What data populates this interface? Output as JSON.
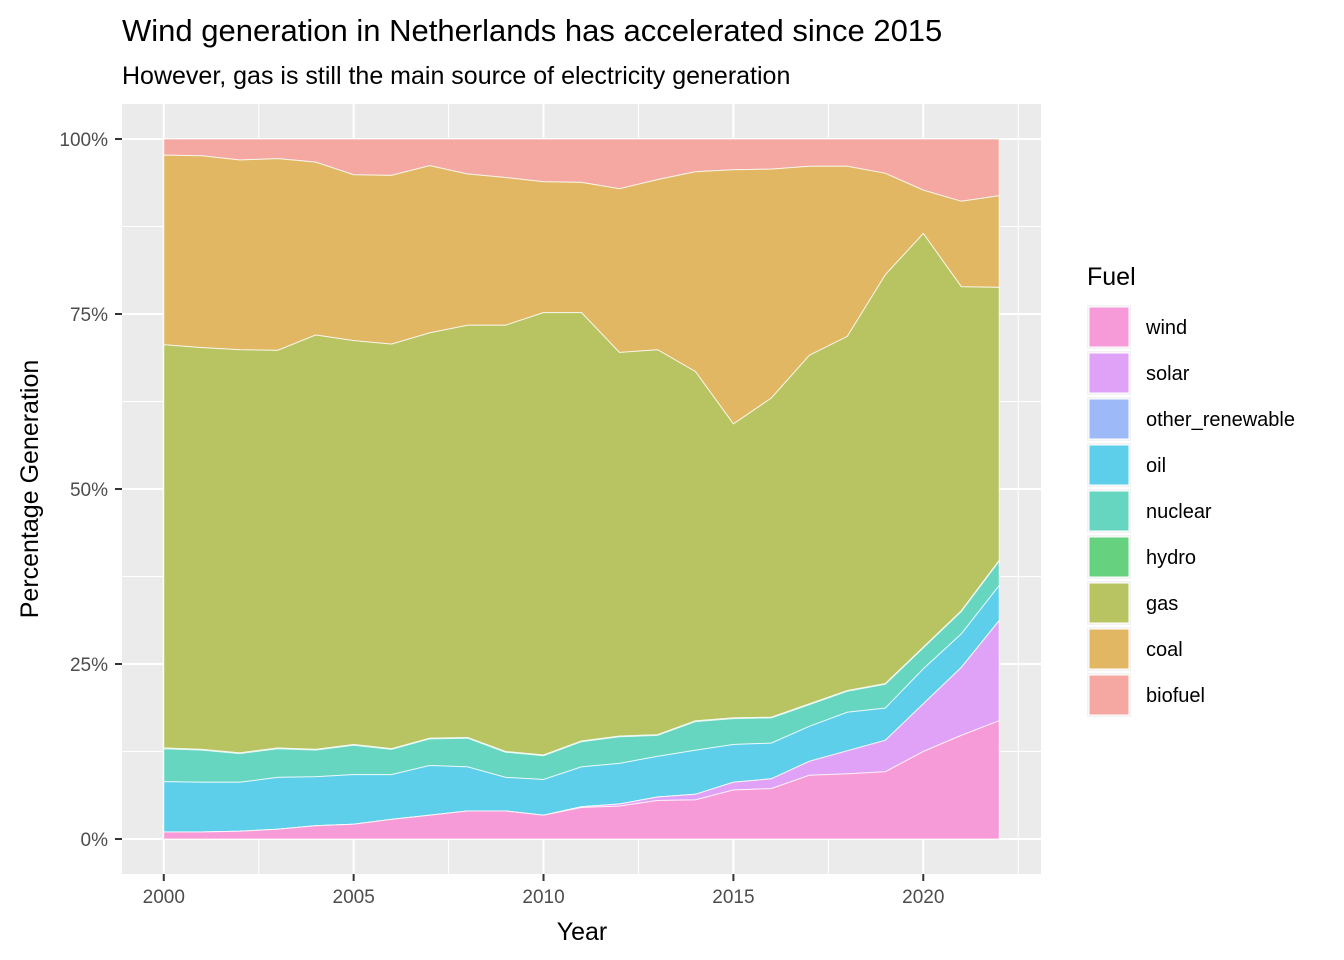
{
  "chart_data": {
    "type": "area",
    "stacked": true,
    "normalized": true,
    "title": "Wind generation in Netherlands has accelerated since 2015",
    "subtitle": "However, gas is still the main source of electricity generation",
    "xlabel": "Year",
    "ylabel": "Percentage Generation",
    "xlim": [
      1998.9,
      2023.1
    ],
    "ylim": [
      -0.05,
      1.05
    ],
    "x_ticks": [
      2000,
      2005,
      2010,
      2015,
      2020
    ],
    "x_tick_labels": [
      "2000",
      "2005",
      "2010",
      "2015",
      "2020"
    ],
    "y_ticks": [
      0,
      0.25,
      0.5,
      0.75,
      1
    ],
    "y_tick_labels": [
      "0%",
      "25%",
      "50%",
      "75%",
      "100%"
    ],
    "grid": true,
    "legend": {
      "title": "Fuel",
      "position": "right"
    },
    "x": [
      2000,
      2001,
      2002,
      2003,
      2004,
      2005,
      2006,
      2007,
      2008,
      2009,
      2010,
      2011,
      2012,
      2013,
      2014,
      2015,
      2016,
      2017,
      2018,
      2019,
      2020,
      2021,
      2022
    ],
    "series": [
      {
        "name": "wind",
        "color": "#F8766D",
        "display_color": "#F69AD8",
        "values": [
          0.01,
          0.01,
          0.011,
          0.014,
          0.019,
          0.021,
          0.028,
          0.034,
          0.04,
          0.04,
          0.034,
          0.045,
          0.047,
          0.055,
          0.056,
          0.07,
          0.072,
          0.091,
          0.093,
          0.096,
          0.125,
          0.148,
          0.169
        ]
      },
      {
        "name": "solar",
        "color": "#E0A2F7",
        "values": [
          0.0,
          0.0,
          0.0,
          0.0,
          0.0,
          0.0,
          0.0,
          0.0,
          0.0,
          0.0,
          0.0,
          0.001,
          0.003,
          0.005,
          0.008,
          0.011,
          0.014,
          0.02,
          0.033,
          0.045,
          0.068,
          0.097,
          0.143
        ]
      },
      {
        "name": "other_renewable",
        "color": "#9EB9F8",
        "values": [
          0.0,
          0.0,
          0.0,
          0.0,
          0.0,
          0.0,
          0.0,
          0.0,
          0.0,
          0.0,
          0.0,
          0.0,
          0.0,
          0.0,
          0.0,
          0.0,
          0.0,
          0.0,
          0.0,
          0.0,
          0.0,
          0.0,
          0.0
        ]
      },
      {
        "name": "oil",
        "color": "#5DCFEA",
        "values": [
          0.072,
          0.071,
          0.07,
          0.074,
          0.07,
          0.071,
          0.064,
          0.071,
          0.063,
          0.048,
          0.051,
          0.057,
          0.058,
          0.058,
          0.063,
          0.054,
          0.051,
          0.05,
          0.055,
          0.046,
          0.05,
          0.048,
          0.05
        ]
      },
      {
        "name": "nuclear",
        "color": "#66D6C0",
        "values": [
          0.047,
          0.046,
          0.041,
          0.041,
          0.038,
          0.042,
          0.036,
          0.038,
          0.041,
          0.036,
          0.034,
          0.036,
          0.038,
          0.03,
          0.041,
          0.037,
          0.036,
          0.031,
          0.03,
          0.034,
          0.03,
          0.032,
          0.035
        ]
      },
      {
        "name": "hydro",
        "color": "#66D27F",
        "values": [
          0.001,
          0.001,
          0.001,
          0.001,
          0.001,
          0.001,
          0.001,
          0.001,
          0.001,
          0.001,
          0.001,
          0.001,
          0.001,
          0.001,
          0.001,
          0.001,
          0.001,
          0.001,
          0.001,
          0.001,
          0.001,
          0.001,
          0.001
        ]
      },
      {
        "name": "gas",
        "color": "#B8C462",
        "values": [
          0.576,
          0.574,
          0.576,
          0.568,
          0.592,
          0.577,
          0.578,
          0.579,
          0.589,
          0.609,
          0.632,
          0.612,
          0.548,
          0.55,
          0.5,
          0.42,
          0.456,
          0.498,
          0.506,
          0.584,
          0.591,
          0.463,
          0.39
        ]
      },
      {
        "name": "coal",
        "color": "#E2B764",
        "values": [
          0.271,
          0.274,
          0.271,
          0.274,
          0.247,
          0.237,
          0.241,
          0.239,
          0.216,
          0.211,
          0.187,
          0.186,
          0.234,
          0.243,
          0.286,
          0.363,
          0.327,
          0.27,
          0.243,
          0.145,
          0.062,
          0.122,
          0.131
        ]
      },
      {
        "name": "biofuel",
        "color": "#F5A8A1",
        "values": [
          0.023,
          0.024,
          0.03,
          0.028,
          0.033,
          0.051,
          0.052,
          0.038,
          0.05,
          0.055,
          0.061,
          0.062,
          0.071,
          0.058,
          0.047,
          0.044,
          0.043,
          0.039,
          0.039,
          0.049,
          0.073,
          0.089,
          0.081
        ]
      }
    ]
  }
}
